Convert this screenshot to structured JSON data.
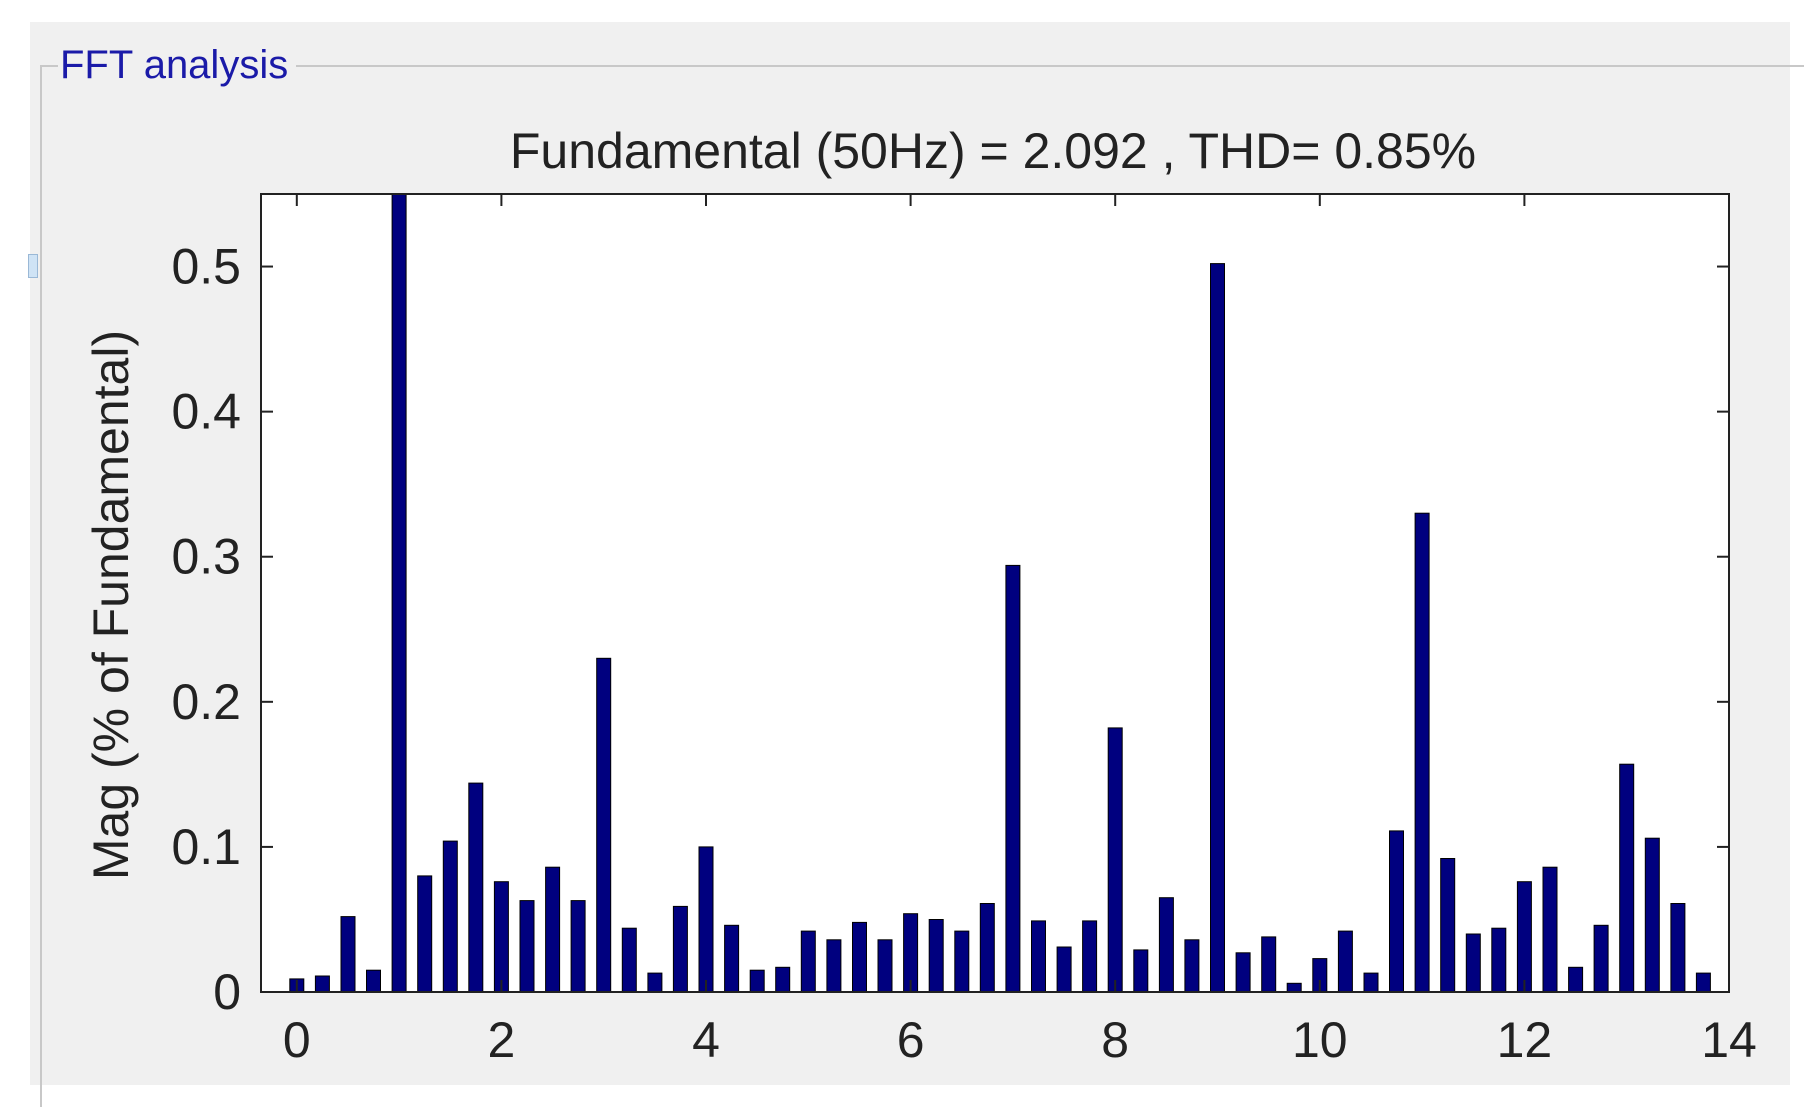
{
  "panel": {
    "title": "FFT analysis"
  },
  "colors": {
    "bar_fill": "#00007f",
    "panel_title": "#1a1aa8",
    "window_bg": "#f0f0f0",
    "axes_bg": "#ffffff"
  },
  "chart_data": {
    "type": "bar",
    "title": "Fundamental (50Hz) = 2.092 , THD= 0.85%",
    "xlabel": "",
    "ylabel": "Mag (% of Fundamental)",
    "xlim": [
      -0.35,
      14
    ],
    "ylim": [
      0,
      0.55
    ],
    "xticks": [
      0,
      2,
      4,
      6,
      8,
      10,
      12,
      14
    ],
    "yticks": [
      0,
      0.1,
      0.2,
      0.3,
      0.4,
      0.5
    ],
    "ytick_labels": [
      "0",
      "0.1",
      "0.2",
      "0.3",
      "0.4",
      "0.5"
    ],
    "grid": false,
    "x": [
      0,
      0.25,
      0.5,
      0.75,
      1,
      1.25,
      1.5,
      1.75,
      2,
      2.25,
      2.5,
      2.75,
      3,
      3.25,
      3.5,
      3.75,
      4,
      4.25,
      4.5,
      4.75,
      5,
      5.25,
      5.5,
      5.75,
      6,
      6.25,
      6.5,
      6.75,
      7,
      7.25,
      7.5,
      7.75,
      8,
      8.25,
      8.5,
      8.75,
      9,
      9.25,
      9.5,
      9.75,
      10,
      10.25,
      10.5,
      10.75,
      11,
      11.25,
      11.5,
      11.75,
      12,
      12.25,
      12.5,
      12.75,
      13,
      13.25,
      13.5,
      13.75
    ],
    "values": [
      0.009,
      0.011,
      0.052,
      0.015,
      0.55,
      0.08,
      0.104,
      0.144,
      0.076,
      0.063,
      0.086,
      0.063,
      0.23,
      0.044,
      0.013,
      0.059,
      0.1,
      0.046,
      0.015,
      0.017,
      0.042,
      0.036,
      0.048,
      0.036,
      0.054,
      0.05,
      0.042,
      0.061,
      0.294,
      0.049,
      0.031,
      0.049,
      0.182,
      0.029,
      0.065,
      0.036,
      0.502,
      0.027,
      0.038,
      0.006,
      0.023,
      0.042,
      0.013,
      0.111,
      0.33,
      0.092,
      0.04,
      0.044,
      0.076,
      0.086,
      0.017,
      0.046,
      0.157,
      0.106,
      0.061,
      0.013
    ]
  }
}
